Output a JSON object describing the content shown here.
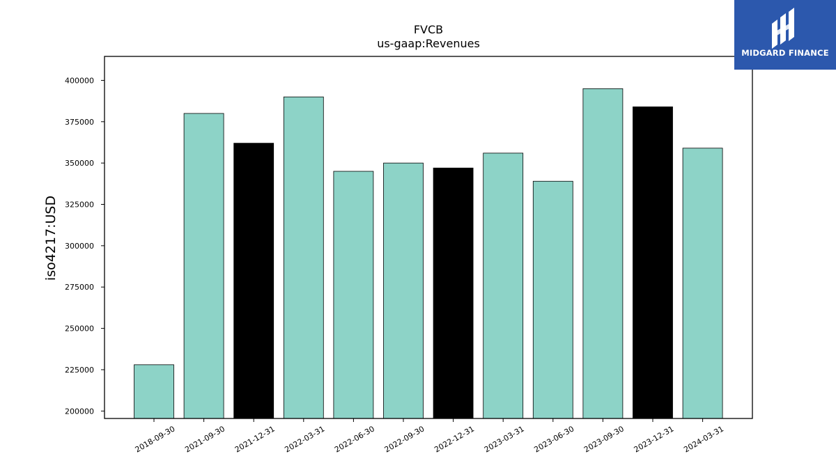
{
  "chart_data": {
    "type": "bar",
    "title": "FVCB",
    "subtitle": "us-gaap:Revenues",
    "xlabel": "",
    "ylabel": "iso4217:USD",
    "categories": [
      "2018-09-30",
      "2021-09-30",
      "2021-12-31",
      "2022-03-31",
      "2022-06-30",
      "2022-09-30",
      "2022-12-31",
      "2023-03-31",
      "2023-06-30",
      "2023-09-30",
      "2023-12-31",
      "2024-03-31"
    ],
    "values": [
      228000,
      380000,
      362000,
      390000,
      345000,
      350000,
      347000,
      356000,
      339000,
      395000,
      384000,
      359000
    ],
    "bar_colors": [
      "#8dd3c7",
      "#8dd3c7",
      "#000000",
      "#8dd3c7",
      "#8dd3c7",
      "#8dd3c7",
      "#000000",
      "#8dd3c7",
      "#8dd3c7",
      "#8dd3c7",
      "#000000",
      "#8dd3c7"
    ],
    "ylim": [
      195500,
      414500
    ],
    "yticks": [
      200000,
      225000,
      250000,
      275000,
      300000,
      325000,
      350000,
      375000,
      400000
    ],
    "grid": false,
    "legend": "none"
  },
  "logo": {
    "text": "MIDGARD FINANCE",
    "background": "#2c58ad"
  }
}
